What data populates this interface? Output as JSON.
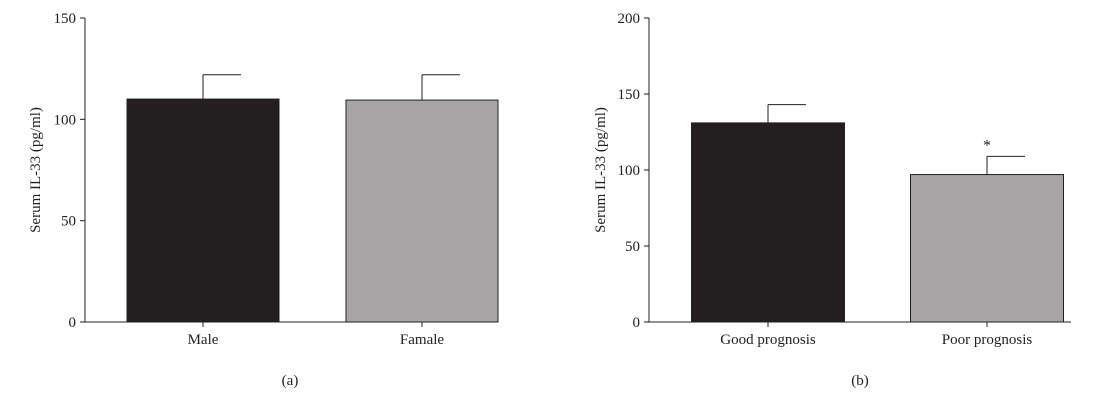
{
  "chart_data": [
    {
      "type": "bar",
      "panel_label": "(a)",
      "ylabel": "Serum IL-33 (pg/ml)",
      "xlabel": "",
      "ylim": [
        0,
        150
      ],
      "yticks": [
        0,
        50,
        100,
        150
      ],
      "categories": [
        "Male",
        "Famale"
      ],
      "values": [
        110,
        109.5
      ],
      "errors": [
        12,
        12.5
      ],
      "bar_colors": [
        "#231f20",
        "#a7a5a6"
      ],
      "annotations": [
        "",
        ""
      ],
      "grid": false,
      "legend": "none"
    },
    {
      "type": "bar",
      "panel_label": "(b)",
      "ylabel": "Serum IL-33 (pg/ml)",
      "xlabel": "",
      "ylim": [
        0,
        200
      ],
      "yticks": [
        0,
        50,
        100,
        150,
        200
      ],
      "categories": [
        "Good prognosis",
        "Poor prognosis"
      ],
      "values": [
        131,
        97
      ],
      "errors": [
        12,
        12
      ],
      "bar_colors": [
        "#231f20",
        "#a7a5a6"
      ],
      "annotations": [
        "",
        "*"
      ],
      "grid": false,
      "legend": "none"
    }
  ]
}
